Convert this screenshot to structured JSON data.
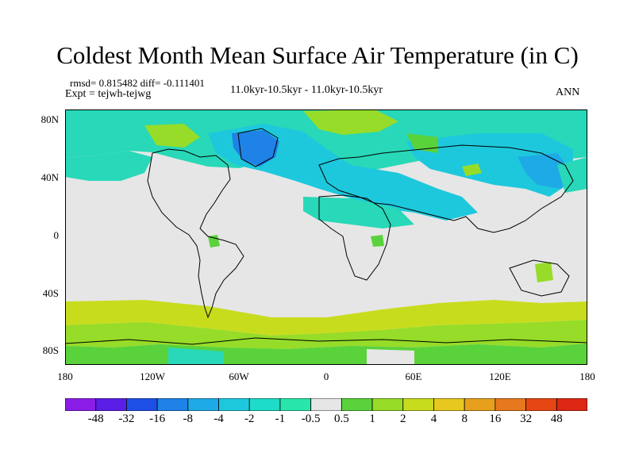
{
  "title": "Coldest Month Mean Surface Air Temperature (in C)",
  "stats": {
    "rmsd_diff": "rmsd= 0.815482 diff= -0.111401",
    "expt": "Expt = tejwh-tejwg",
    "period": "11.0kyr-10.5kyr - 11.0kyr-10.5kyr",
    "season": "ANN"
  },
  "axes": {
    "y_ticks": [
      "80N",
      "40N",
      "0",
      "40S",
      "80S"
    ],
    "x_ticks": [
      "180",
      "120W",
      "60W",
      "0",
      "60E",
      "120E",
      "180"
    ]
  },
  "colorbar": {
    "labels": [
      "-48",
      "-32",
      "-16",
      "-8",
      "-4",
      "-2",
      "-1",
      "-0.5",
      "0.5",
      "1",
      "2",
      "4",
      "8",
      "16",
      "32",
      "48"
    ],
    "colors": [
      "#8b1ee6",
      "#5a1ee6",
      "#1e50e6",
      "#1e82e6",
      "#1eaae6",
      "#1ec8dc",
      "#1edcc8",
      "#28e6aa",
      "#e6e6e6",
      "#5ad23c",
      "#96dc28",
      "#c8dc1e",
      "#e6c81e",
      "#e6a01e",
      "#e6781e",
      "#e64614",
      "#dc2814"
    ]
  },
  "map_colors": {
    "neutral": "#e6e6e6",
    "cool_light": "#28d8b8",
    "cool_mid": "#1ec8dc",
    "cool_strong": "#1eaae6",
    "cool_deep": "#1e82e6",
    "warm_light": "#5ad23c",
    "warm_mid": "#96dc28",
    "warm_strong": "#c8dc1e",
    "coast": "#000000"
  }
}
